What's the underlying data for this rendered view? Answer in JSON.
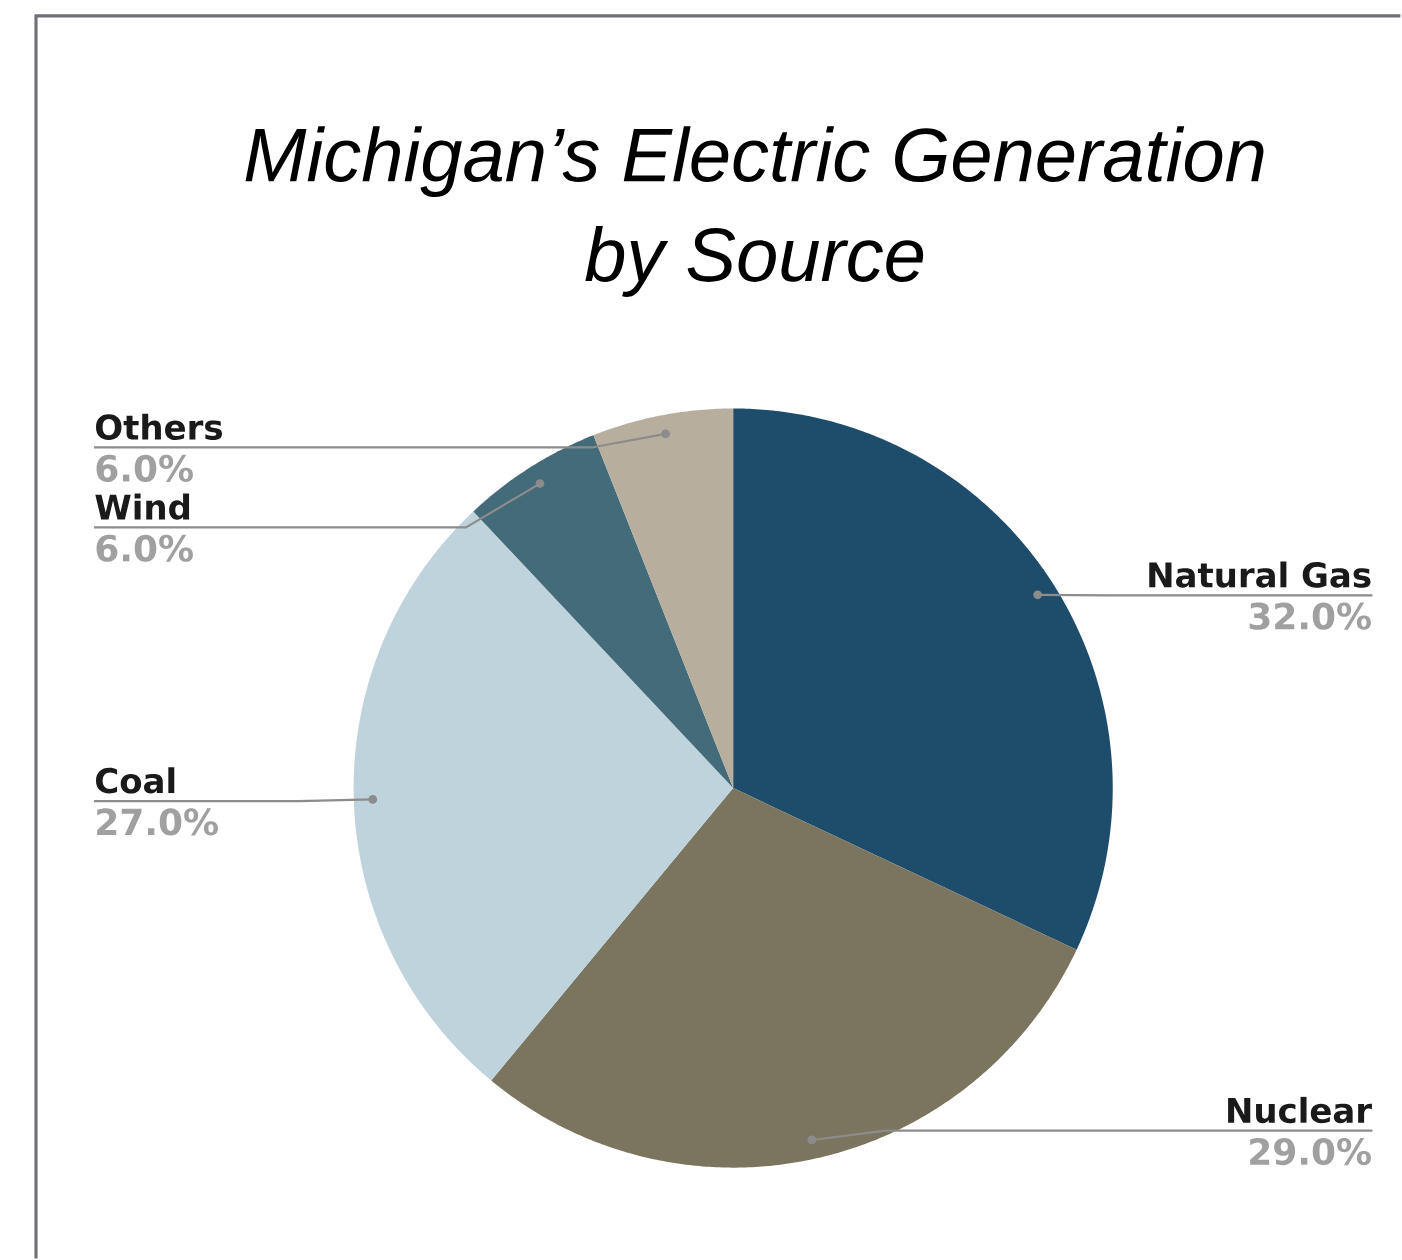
{
  "chart_data": {
    "type": "pie",
    "title": "Michigan’s Electric Generation by Source",
    "categories": [
      "Natural Gas",
      "Nuclear",
      "Coal",
      "Wind",
      "Others"
    ],
    "values": [
      32,
      29,
      27,
      6,
      6
    ],
    "value_labels": [
      "32.0%",
      "29.0%",
      "27.0%",
      "6.0%",
      "6.0%"
    ],
    "colors": [
      "#1e4d6b",
      "#7b745e",
      "#bfd3dc",
      "#436b79",
      "#b8ae9d"
    ]
  }
}
